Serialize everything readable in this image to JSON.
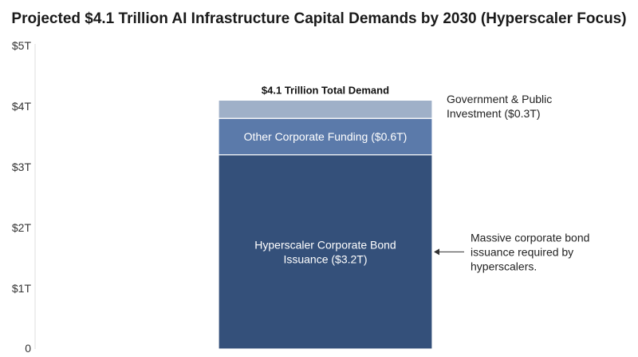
{
  "chart_data": {
    "type": "bar",
    "stacked": true,
    "title": "Projected $4.1 Trillion AI Infrastructure Capital Demands by 2030 (Hyperscaler Focus)",
    "xlabel": "",
    "ylabel": "",
    "ylim": [
      0,
      5
    ],
    "yticks": [
      {
        "value": 0,
        "label": "0"
      },
      {
        "value": 1,
        "label": "$1T"
      },
      {
        "value": 2,
        "label": "$2T"
      },
      {
        "value": 3,
        "label": "$3T"
      },
      {
        "value": 4,
        "label": "$4T"
      },
      {
        "value": 5,
        "label": "$5T"
      }
    ],
    "grid": false,
    "total": {
      "value": 4.1,
      "label": "$4.1 Trillion Total Demand"
    },
    "series": [
      {
        "name": "Hyperscaler Corporate Bond Issuance ($3.2T)",
        "value": 3.2,
        "color": "#34507a",
        "label_lines": [
          "Hyperscaler Corporate Bond",
          "Issuance ($3.2T)"
        ],
        "label_position": "inside"
      },
      {
        "name": "Other Corporate Funding ($0.6T)",
        "value": 0.6,
        "color": "#5b7aaa",
        "label_lines": [
          "Other Corporate Funding ($0.6T)"
        ],
        "label_position": "inside"
      },
      {
        "name": "Government & Public Investment ($0.3T)",
        "value": 0.3,
        "color": "#9fb0c8",
        "label_lines": [
          "Government & Public",
          "Investment ($0.3T)"
        ],
        "label_position": "outside-right"
      }
    ],
    "annotation": {
      "text_lines": [
        "Massive corporate bond",
        "issuance required by",
        "hyperscalers."
      ],
      "points_to": "Hyperscaler Corporate Bond Issuance ($3.2T)"
    }
  }
}
